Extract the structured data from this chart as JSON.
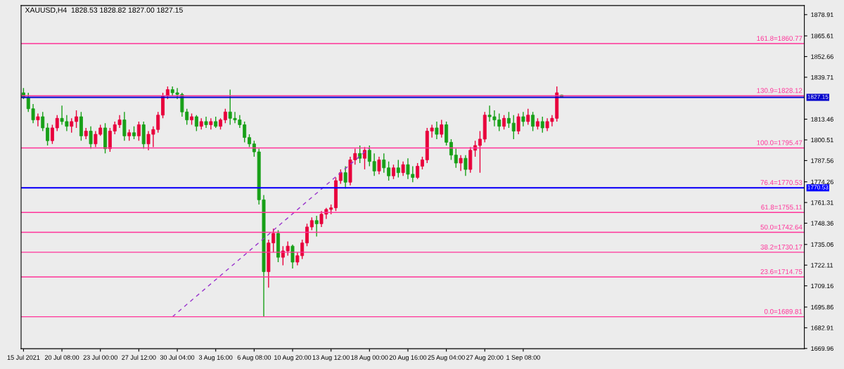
{
  "chart_data": {
    "type": "candlestick",
    "title": "XAUUSD,H4  1828.53 1828.82 1827.00 1827.15",
    "categories": [
      "15 Jul 2021",
      null,
      null,
      null,
      null,
      null,
      null,
      null,
      "20 Jul 08:00",
      null,
      null,
      null,
      null,
      null,
      null,
      null,
      "23 Jul 00:00",
      null,
      null,
      null,
      null,
      null,
      null,
      null,
      "27 Jul 12:00",
      null,
      null,
      null,
      null,
      null,
      null,
      null,
      "30 Jul 04:00",
      null,
      null,
      null,
      null,
      null,
      null,
      null,
      "3 Aug 16:00",
      null,
      null,
      null,
      null,
      null,
      null,
      null,
      "6 Aug 08:00",
      null,
      null,
      null,
      null,
      null,
      null,
      null,
      "10 Aug 20:00",
      null,
      null,
      null,
      null,
      null,
      null,
      null,
      "13 Aug 12:00",
      null,
      null,
      null,
      null,
      null,
      null,
      null,
      "18 Aug 00:00",
      null,
      null,
      null,
      null,
      null,
      null,
      null,
      "20 Aug 16:00",
      null,
      null,
      null,
      null,
      null,
      null,
      null,
      "25 Aug 04:00",
      null,
      null,
      null,
      null,
      null,
      null,
      null,
      "27 Aug 20:00",
      null,
      null,
      null,
      null,
      null,
      null,
      null,
      "1 Sep 08:00",
      null,
      null,
      null,
      null,
      null,
      null,
      null,
      null,
      null,
      null,
      null,
      null,
      null,
      null,
      null,
      null,
      null,
      null,
      null,
      null,
      null,
      null,
      null,
      null,
      null,
      null,
      null,
      null,
      null,
      null,
      null,
      null,
      null,
      null,
      null,
      null,
      null,
      null,
      null,
      null,
      null,
      null,
      null,
      null,
      null,
      null,
      null,
      null,
      null,
      null,
      null,
      null,
      null,
      null,
      null,
      null,
      null,
      null
    ],
    "ohlc": [
      [
        1830,
        1833,
        1826,
        1827
      ],
      [
        1827,
        1830,
        1818,
        1820
      ],
      [
        1820,
        1823,
        1811,
        1813
      ],
      [
        1813,
        1817,
        1809,
        1815
      ],
      [
        1815,
        1818,
        1806,
        1808
      ],
      [
        1808,
        1811,
        1797,
        1800
      ],
      [
        1800,
        1810,
        1798,
        1808
      ],
      [
        1808,
        1816,
        1806,
        1814
      ],
      [
        1814,
        1822,
        1810,
        1812
      ],
      [
        1812,
        1816,
        1806,
        1809
      ],
      [
        1809,
        1814,
        1805,
        1812
      ],
      [
        1812,
        1819,
        1808,
        1815
      ],
      [
        1815,
        1818,
        1800,
        1803
      ],
      [
        1803,
        1808,
        1801,
        1806
      ],
      [
        1806,
        1809,
        1795,
        1798
      ],
      [
        1798,
        1806,
        1796,
        1804
      ],
      [
        1804,
        1810,
        1803,
        1808
      ],
      [
        1808,
        1811,
        1792,
        1795
      ],
      [
        1795,
        1808,
        1793,
        1806
      ],
      [
        1806,
        1812,
        1804,
        1810
      ],
      [
        1810,
        1816,
        1808,
        1813
      ],
      [
        1813,
        1818,
        1800,
        1803
      ],
      [
        1803,
        1807,
        1800,
        1805
      ],
      [
        1805,
        1809,
        1801,
        1803
      ],
      [
        1803,
        1812,
        1800,
        1810
      ],
      [
        1810,
        1812,
        1795,
        1798
      ],
      [
        1798,
        1806,
        1794,
        1804
      ],
      [
        1804,
        1809,
        1796,
        1807
      ],
      [
        1807,
        1818,
        1805,
        1816
      ],
      [
        1816,
        1830,
        1814,
        1828
      ],
      [
        1828,
        1834,
        1826,
        1832
      ],
      [
        1832,
        1834,
        1828,
        1830
      ],
      [
        1830,
        1833,
        1826,
        1829
      ],
      [
        1829,
        1830,
        1815,
        1818
      ],
      [
        1818,
        1820,
        1810,
        1813
      ],
      [
        1813,
        1817,
        1810,
        1815
      ],
      [
        1815,
        1816,
        1806,
        1809
      ],
      [
        1809,
        1814,
        1807,
        1812
      ],
      [
        1812,
        1815,
        1808,
        1810
      ],
      [
        1810,
        1814,
        1807,
        1812
      ],
      [
        1812,
        1815,
        1808,
        1809
      ],
      [
        1809,
        1814,
        1807,
        1813
      ],
      [
        1813,
        1820,
        1811,
        1818
      ],
      [
        1818,
        1832,
        1810,
        1814
      ],
      [
        1814,
        1818,
        1811,
        1813
      ],
      [
        1813,
        1816,
        1808,
        1810
      ],
      [
        1810,
        1812,
        1799,
        1802
      ],
      [
        1802,
        1804,
        1796,
        1798
      ],
      [
        1798,
        1800,
        1790,
        1793
      ],
      [
        1793,
        1795,
        1760,
        1763
      ],
      [
        1763,
        1766,
        1689.8,
        1718
      ],
      [
        1718,
        1738,
        1708,
        1736
      ],
      [
        1736,
        1745,
        1730,
        1742
      ],
      [
        1742,
        1744,
        1724,
        1727
      ],
      [
        1727,
        1734,
        1722,
        1731
      ],
      [
        1731,
        1737,
        1728,
        1734
      ],
      [
        1734,
        1735,
        1720,
        1724
      ],
      [
        1724,
        1730,
        1722,
        1728
      ],
      [
        1728,
        1738,
        1726,
        1736
      ],
      [
        1736,
        1748,
        1734,
        1746
      ],
      [
        1746,
        1752,
        1744,
        1750
      ],
      [
        1750,
        1753,
        1740,
        1748
      ],
      [
        1748,
        1756,
        1746,
        1754
      ],
      [
        1754,
        1758,
        1751,
        1757
      ],
      [
        1757,
        1760,
        1754,
        1758
      ],
      [
        1758,
        1777,
        1756,
        1775
      ],
      [
        1775,
        1782,
        1773,
        1780
      ],
      [
        1780,
        1784,
        1770,
        1774
      ],
      [
        1774,
        1790,
        1772,
        1788
      ],
      [
        1788,
        1795,
        1785,
        1792
      ],
      [
        1792,
        1797,
        1786,
        1789
      ],
      [
        1789,
        1796,
        1782,
        1794
      ],
      [
        1794,
        1797,
        1784,
        1787
      ],
      [
        1787,
        1792,
        1778,
        1781
      ],
      [
        1781,
        1790,
        1779,
        1788
      ],
      [
        1788,
        1792,
        1780,
        1783
      ],
      [
        1783,
        1787,
        1775,
        1778
      ],
      [
        1778,
        1785,
        1776,
        1783
      ],
      [
        1783,
        1788,
        1777,
        1780
      ],
      [
        1780,
        1787,
        1778,
        1785
      ],
      [
        1785,
        1789,
        1776,
        1779
      ],
      [
        1779,
        1784,
        1774,
        1777
      ],
      [
        1777,
        1786,
        1776,
        1784
      ],
      [
        1784,
        1790,
        1782,
        1788
      ],
      [
        1788,
        1808,
        1786,
        1806
      ],
      [
        1806,
        1810,
        1802,
        1808
      ],
      [
        1808,
        1812,
        1801,
        1804
      ],
      [
        1804,
        1813,
        1802,
        1810
      ],
      [
        1810,
        1812,
        1797,
        1799
      ],
      [
        1799,
        1801,
        1788,
        1791
      ],
      [
        1791,
        1795,
        1783,
        1786
      ],
      [
        1786,
        1791,
        1781,
        1789
      ],
      [
        1789,
        1791,
        1778,
        1782
      ],
      [
        1782,
        1796,
        1780,
        1794
      ],
      [
        1794,
        1800,
        1790,
        1797
      ],
      [
        1797,
        1806,
        1780,
        1801
      ],
      [
        1801,
        1818,
        1799,
        1816
      ],
      [
        1816,
        1822,
        1812,
        1815
      ],
      [
        1815,
        1819,
        1809,
        1813
      ],
      [
        1813,
        1817,
        1806,
        1809
      ],
      [
        1809,
        1816,
        1807,
        1814
      ],
      [
        1814,
        1818,
        1808,
        1811
      ],
      [
        1811,
        1816,
        1801,
        1806
      ],
      [
        1806,
        1817,
        1804,
        1815
      ],
      [
        1815,
        1818,
        1809,
        1812
      ],
      [
        1812,
        1820,
        1810,
        1816
      ],
      [
        1816,
        1818,
        1806,
        1809
      ],
      [
        1809,
        1814,
        1807,
        1812
      ],
      [
        1812,
        1815,
        1805,
        1808
      ],
      [
        1808,
        1814,
        1806,
        1812
      ],
      [
        1812,
        1816,
        1809,
        1814
      ],
      [
        1814,
        1834,
        1812,
        1830
      ],
      [
        1828.53,
        1828.82,
        1827.0,
        1827.15
      ],
      null,
      null,
      null,
      null,
      null,
      null,
      null,
      null,
      null,
      null,
      null,
      null,
      null,
      null,
      null,
      null,
      null,
      null,
      null,
      null,
      null,
      null,
      null,
      null,
      null,
      null,
      null,
      null,
      null,
      null,
      null,
      null,
      null,
      null,
      null,
      null,
      null,
      null,
      null,
      null,
      null,
      null,
      null,
      null,
      null,
      null,
      null,
      null,
      null,
      null
    ],
    "colors": [
      "#18a018",
      "#18a018",
      "#18a018",
      "#e8003c",
      "#18a018",
      "#18a018",
      "#e8003c",
      "#e8003c",
      "#18a018",
      "#18a018",
      "#e8003c",
      "#e8003c",
      "#18a018",
      "#e8003c",
      "#18a018",
      "#e8003c",
      "#e8003c",
      "#18a018",
      "#e8003c",
      "#e8003c",
      "#e8003c",
      "#18a018",
      "#e8003c",
      "#18a018",
      "#e8003c",
      "#18a018",
      "#e8003c",
      "#e8003c",
      "#e8003c",
      "#e8003c",
      "#e8003c",
      "#18a018",
      "#18a018",
      "#18a018",
      "#18a018",
      "#e8003c",
      "#18a018",
      "#e8003c",
      "#18a018",
      "#e8003c",
      "#18a018",
      "#e8003c",
      "#e8003c",
      "#18a018",
      "#18a018",
      "#18a018",
      "#18a018",
      "#18a018",
      "#18a018",
      "#18a018",
      "#18a018",
      "#e8003c",
      "#e8003c",
      "#18a018",
      "#e8003c",
      "#e8003c",
      "#18a018",
      "#e8003c",
      "#e8003c",
      "#e8003c",
      "#e8003c",
      "#18a018",
      "#e8003c",
      "#e8003c",
      "#e8003c",
      "#e8003c",
      "#e8003c",
      "#18a018",
      "#e8003c",
      "#e8003c",
      "#18a018",
      "#e8003c",
      "#18a018",
      "#18a018",
      "#e8003c",
      "#18a018",
      "#18a018",
      "#e8003c",
      "#18a018",
      "#e8003c",
      "#18a018",
      "#18a018",
      "#e8003c",
      "#e8003c",
      "#e8003c",
      "#e8003c",
      "#18a018",
      "#e8003c",
      "#18a018",
      "#18a018",
      "#18a018",
      "#e8003c",
      "#18a018",
      "#e8003c",
      "#e8003c",
      "#e8003c",
      "#e8003c",
      "#18a018",
      "#18a018",
      "#18a018",
      "#e8003c",
      "#18a018",
      "#18a018",
      "#e8003c",
      "#18a018",
      "#e8003c",
      "#18a018",
      "#e8003c",
      "#18a018",
      "#e8003c",
      "#e8003c",
      "#e8003c",
      "#18a018",
      null,
      null,
      null,
      null,
      null,
      null,
      null,
      null,
      null,
      null,
      null,
      null,
      null,
      null,
      null,
      null,
      null,
      null,
      null,
      null,
      null,
      null,
      null,
      null,
      null,
      null,
      null,
      null,
      null,
      null,
      null,
      null,
      null,
      null,
      null,
      null,
      null,
      null,
      null,
      null,
      null,
      null,
      null,
      null,
      null,
      null,
      null,
      null,
      null,
      null
    ],
    "series": [
      {
        "type": "line",
        "values": [
          null,
          null,
          null,
          null,
          null,
          null,
          null,
          null,
          null,
          null,
          null,
          null,
          null,
          null,
          null,
          null,
          null,
          null,
          null,
          null,
          null,
          null,
          null,
          null,
          null,
          null,
          null,
          null,
          null,
          null,
          null,
          1689.8,
          null,
          null,
          null,
          null,
          null,
          null,
          null,
          null,
          null,
          null,
          null,
          null,
          null,
          null,
          null,
          null,
          null,
          null,
          null,
          null,
          null,
          null,
          null,
          null,
          null,
          null,
          null,
          null,
          null,
          null,
          null,
          null,
          null,
          null,
          null,
          null,
          null,
          null,
          null,
          null,
          1795.5,
          null,
          null,
          null,
          null,
          null,
          null,
          null,
          null,
          null,
          null,
          null,
          null,
          null,
          null,
          null,
          null,
          null,
          null,
          null,
          null,
          null,
          null,
          null,
          null,
          null,
          null,
          null,
          null,
          null,
          null,
          null,
          null,
          null,
          null,
          null,
          null,
          null,
          null,
          null,
          null,
          null,
          null,
          null,
          null,
          null,
          null,
          null,
          null,
          null,
          null,
          null,
          null,
          null,
          null,
          null,
          null,
          null,
          null,
          null,
          null,
          null,
          null,
          null,
          null,
          null,
          null,
          null,
          null,
          null,
          null,
          null,
          null,
          null,
          null,
          null,
          null,
          null,
          null,
          null,
          null,
          null,
          null,
          null,
          null,
          null,
          null,
          null,
          null,
          null,
          null
        ],
        "color": "#9933cc",
        "line_style": "dashed"
      }
    ],
    "ylim": [
      1669.8,
      1884.6
    ],
    "yticks": [
      1878.91,
      1865.61,
      1852.66,
      1839.71,
      1813.46,
      1800.51,
      1787.56,
      1774.26,
      1761.31,
      1748.36,
      1735.06,
      1722.11,
      1709.16,
      1695.86,
      1682.91,
      1669.96
    ],
    "ref_lines": [
      {
        "axis": "y",
        "value": 1860.77,
        "label": "161.8=1860.77",
        "color": "#ff3399"
      },
      {
        "axis": "y",
        "value": 1828.12,
        "label": "130.9=1828.12",
        "color": "#ff3399"
      },
      {
        "axis": "y",
        "value": 1827.15,
        "label": "1827.15",
        "color": "#0000cc"
      },
      {
        "axis": "y",
        "value": 1795.47,
        "label": "100.0=1795.47",
        "color": "#ff3399"
      },
      {
        "axis": "y",
        "value": 1770.53,
        "label": "76.4=1770.53",
        "color": "#ff3399"
      },
      {
        "axis": "y",
        "value": 1770.53,
        "label": "1770.53",
        "color": "#0000ff"
      },
      {
        "axis": "y",
        "value": 1755.11,
        "label": "61.8=1755.11",
        "color": "#ff3399"
      },
      {
        "axis": "y",
        "value": 1742.64,
        "label": "50.0=1742.64",
        "color": "#ff3399"
      },
      {
        "axis": "y",
        "value": 1730.17,
        "label": "38.2=1730.17",
        "color": "#ff3399"
      },
      {
        "axis": "y",
        "value": 1714.75,
        "label": "23.6=1714.75",
        "color": "#ff3399"
      },
      {
        "axis": "y",
        "value": 1689.81,
        "label": "0.0=1689.81",
        "color": "#ff3399"
      }
    ],
    "grid": false,
    "legend": false
  }
}
